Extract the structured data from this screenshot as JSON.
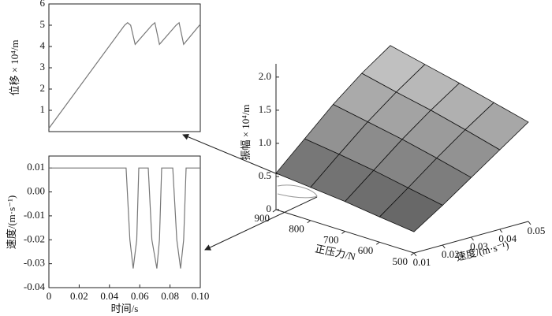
{
  "chart_data": [
    {
      "type": "line",
      "ylabel": "位移 × 10⁴/m",
      "x": [
        0,
        0.05,
        0.052,
        0.054,
        0.057,
        0.068,
        0.07,
        0.073,
        0.084,
        0.086,
        0.089,
        0.1
      ],
      "values": [
        0.15,
        5.0,
        5.12,
        5.0,
        4.1,
        5.0,
        5.12,
        4.1,
        5.0,
        5.12,
        4.1,
        5.05
      ],
      "color": "#777777",
      "xlim": [
        0,
        0.1
      ],
      "ylim": [
        0,
        6
      ],
      "yticks": [
        1,
        2,
        3,
        4,
        5,
        6
      ]
    },
    {
      "type": "line",
      "xlabel": "时间/s",
      "ylabel": "速度/(m·s⁻¹)",
      "x": [
        0,
        0.051,
        0.0535,
        0.0557,
        0.058,
        0.0594,
        0.0656,
        0.068,
        0.0713,
        0.073,
        0.0745,
        0.0818,
        0.0845,
        0.087,
        0.089,
        0.0906,
        0.1
      ],
      "values": [
        0.01,
        0.01,
        -0.02,
        -0.032,
        -0.02,
        0.01,
        0.01,
        -0.02,
        -0.032,
        -0.02,
        0.01,
        0.01,
        -0.02,
        -0.032,
        -0.02,
        0.01,
        0.01
      ],
      "color": "#777777",
      "xlim": [
        0,
        0.1
      ],
      "ylim": [
        -0.04,
        0.015
      ],
      "xticks": [
        0,
        0.02,
        0.04,
        0.06,
        0.08,
        {
          "value": 0.1,
          "label": "0.10"
        }
      ],
      "yticks": [
        0.01,
        {
          "value": 0,
          "label": "0.00"
        },
        -0.01,
        -0.02,
        -0.03,
        -0.04
      ]
    },
    {
      "type": "surface",
      "xlabel": "速度/(m·s⁻¹)",
      "ylabel": "正压力/N",
      "zlabel": "振幅 × 10⁴/m",
      "x": [
        0.01,
        0.02,
        0.03,
        0.04,
        0.05
      ],
      "y": [
        500,
        600,
        700,
        800,
        900
      ],
      "values": [
        [
          0.32,
          0.6,
          0.9,
          1.2,
          1.5
        ],
        [
          0.38,
          0.7,
          1.03,
          1.34,
          1.63
        ],
        [
          0.45,
          0.8,
          1.15,
          1.47,
          1.76
        ],
        [
          0.5,
          0.88,
          1.25,
          1.58,
          1.88
        ],
        [
          0.55,
          0.95,
          1.35,
          1.7,
          2.0
        ]
      ],
      "xlim": [
        0.01,
        0.05
      ],
      "ylim": [
        500,
        900
      ],
      "zlim": [
        0,
        2.2
      ],
      "xticks": [
        0.01,
        0.02,
        0.03,
        0.04,
        0.05
      ],
      "yticks": [
        500,
        600,
        700,
        800,
        900
      ],
      "zticks": [
        0,
        0.5,
        {
          "value": 1,
          "label": "1.0"
        },
        1.5,
        {
          "value": 2,
          "label": "2.0"
        }
      ]
    }
  ]
}
